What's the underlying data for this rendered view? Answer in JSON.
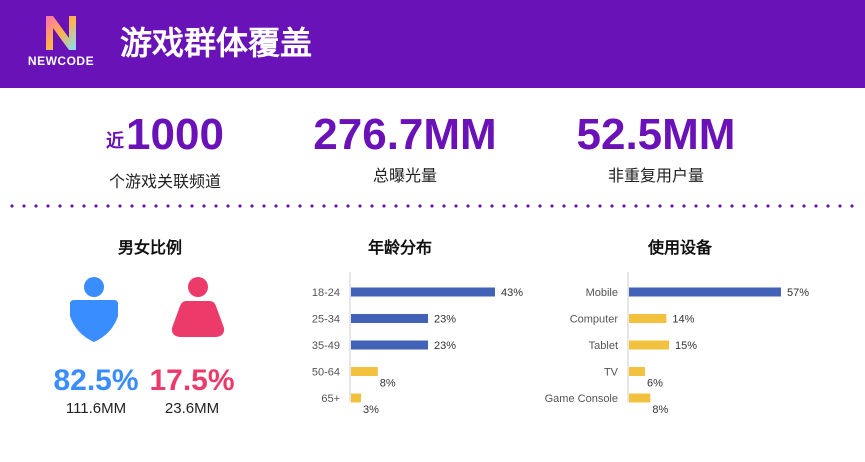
{
  "header": {
    "logo_letter": "N",
    "logo_text": "NEWCODE",
    "title": "游戏群体覆盖"
  },
  "stats": [
    {
      "prefix": "近",
      "value": "1000",
      "label": "个游戏关联频道"
    },
    {
      "prefix": "",
      "value": "276.7MM",
      "label": "总曝光量"
    },
    {
      "prefix": "",
      "value": "52.5MM",
      "label": "非重复用户量"
    }
  ],
  "gender": {
    "title": "男女比例",
    "male": {
      "icon": "male-user-icon",
      "percent": "82.5%",
      "count": "111.6MM",
      "color": "#3a8dff"
    },
    "female": {
      "icon": "female-user-icon",
      "percent": "17.5%",
      "count": "23.6MM",
      "color": "#ec3a6b"
    }
  },
  "chart_data": [
    {
      "type": "bar",
      "orientation": "horizontal",
      "title": "年龄分布",
      "categories": [
        "18-24",
        "25-34",
        "35-49",
        "50-64",
        "65+"
      ],
      "values": [
        43,
        23,
        23,
        8,
        3
      ],
      "value_labels": [
        "43%",
        "23%",
        "23%",
        "8%",
        "3%"
      ],
      "colors": [
        "#4262b8",
        "#4262b8",
        "#4262b8",
        "#f2c13d",
        "#f2c13d"
      ],
      "xlim": [
        0,
        43
      ]
    },
    {
      "type": "bar",
      "orientation": "horizontal",
      "title": "使用设备",
      "categories": [
        "Mobile",
        "Computer",
        "Tablet",
        "TV",
        "Game Console"
      ],
      "values": [
        57,
        14,
        15,
        6,
        8
      ],
      "value_labels": [
        "57%",
        "14%",
        "15%",
        "6%",
        "8%"
      ],
      "colors": [
        "#4262b8",
        "#f2c13d",
        "#f2c13d",
        "#f2c13d",
        "#f2c13d"
      ],
      "xlim": [
        0,
        57
      ]
    }
  ]
}
